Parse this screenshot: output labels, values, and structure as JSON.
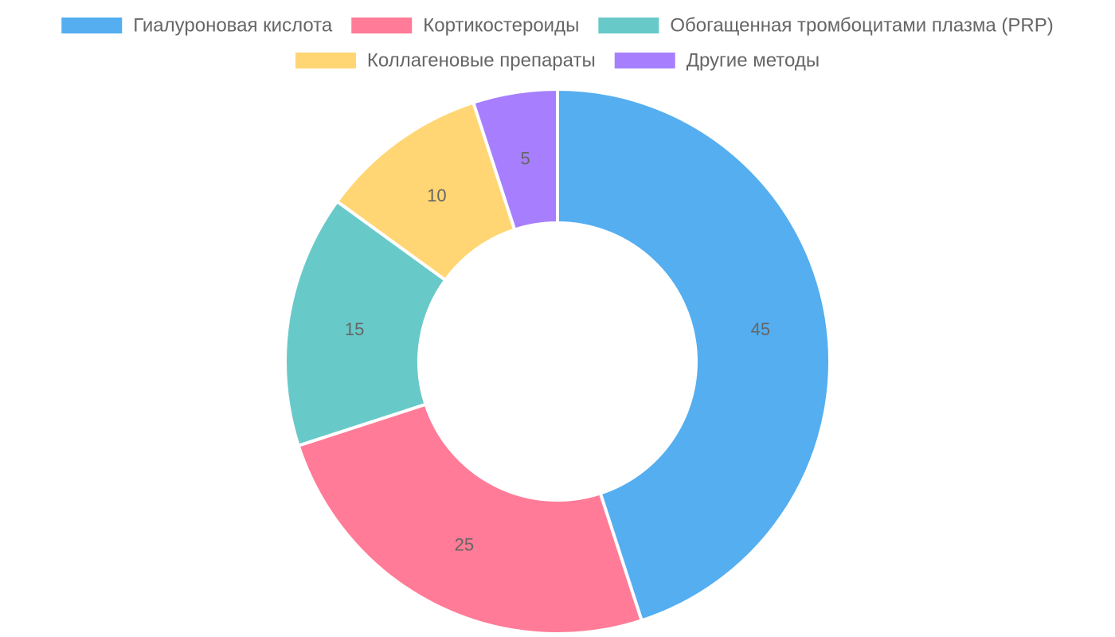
{
  "chart_data": {
    "type": "pie",
    "variant": "doughnut",
    "categories": [
      "Гиалуроновая кислота",
      "Кортикостероиды",
      "Обогащенная тромбоцитами плазма (PRP)",
      "Коллагеновые препараты",
      "Другие методы"
    ],
    "values": [
      45,
      25,
      15,
      10,
      5
    ],
    "colors": [
      "#54aef0",
      "#ff7b97",
      "#68c9c9",
      "#ffd673",
      "#a77ffe"
    ],
    "legend_position": "top",
    "border_color": "#ffffff"
  }
}
